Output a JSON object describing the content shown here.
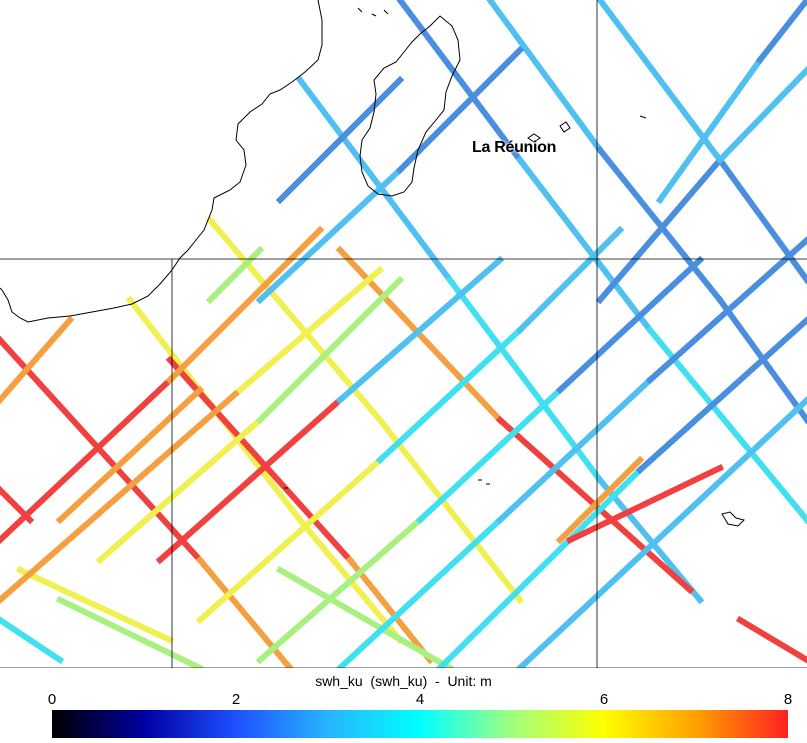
{
  "map": {
    "place_label": "La Réunion",
    "gridlines": "on",
    "background": "#ffffff",
    "coastline_color": "#000000"
  },
  "colorbar": {
    "variable": "swh_ku",
    "title": "swh_ku  (swh_ku)  -  Unit: m",
    "unit": "m",
    "range": [
      0,
      8
    ],
    "ticks": [
      "0",
      "2",
      "4",
      "6",
      "8"
    ],
    "colors": [
      "#000000",
      "#0000a0",
      "#1e50ff",
      "#28b4ff",
      "#00ffff",
      "#a0ff80",
      "#ffff00",
      "#ffa000",
      "#ff2020"
    ]
  }
}
